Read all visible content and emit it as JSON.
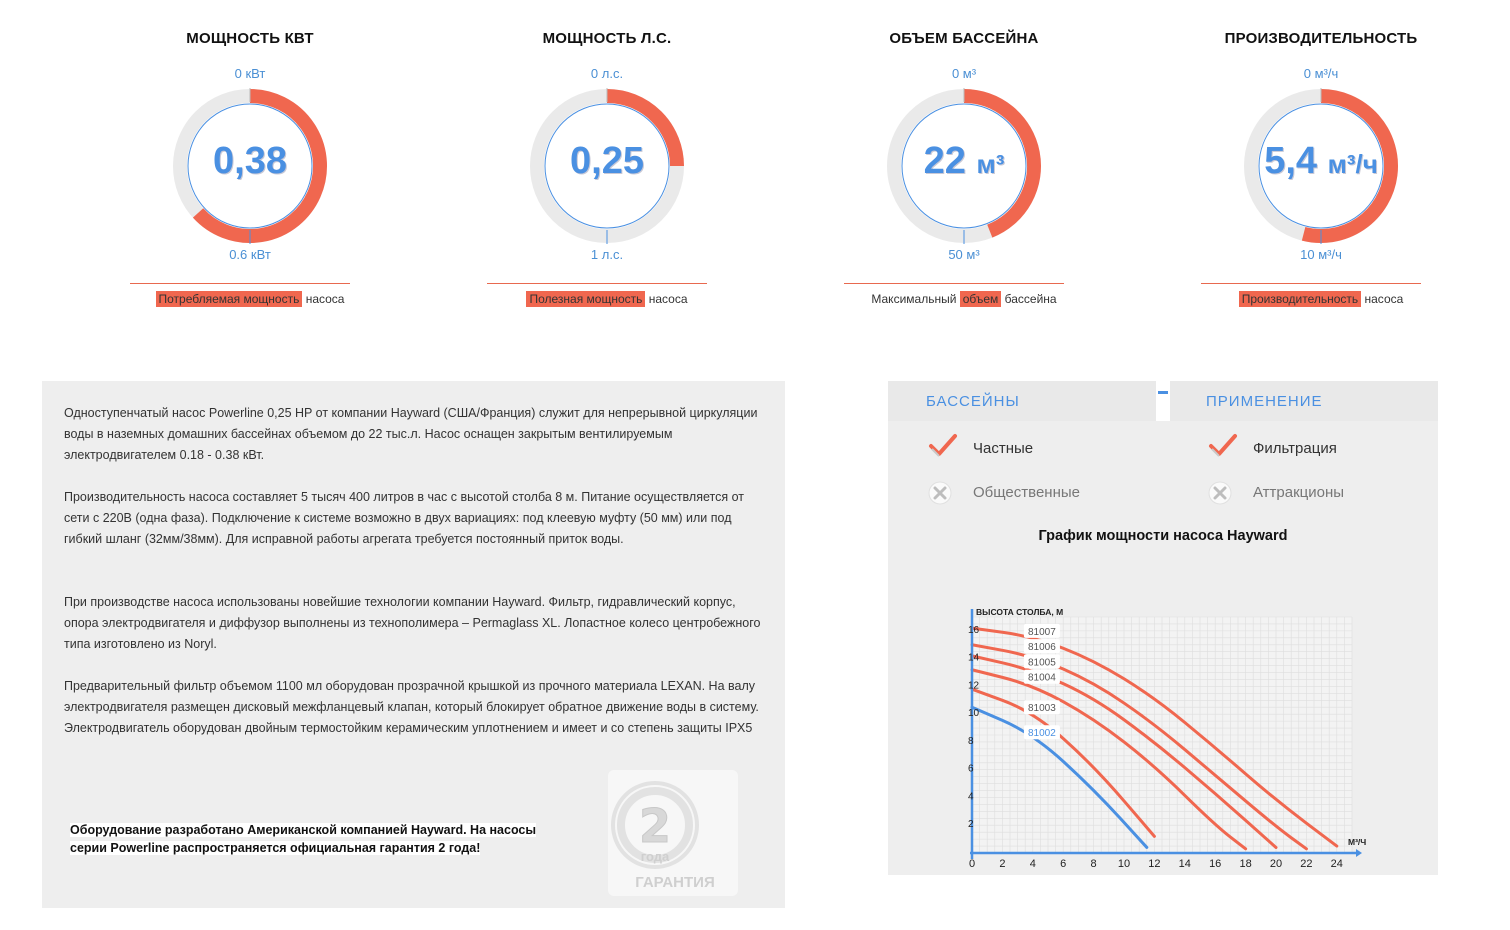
{
  "gauges": [
    {
      "title": "МОЩНОСТЬ КВТ",
      "min": "0 кВт",
      "max": "0.6 кВт",
      "value": "0,38",
      "unit": "",
      "fraction": 0.633,
      "caption_highlight": "Потребляемая мощность",
      "caption_pre": "",
      "caption_post": " насоса"
    },
    {
      "title": "МОЩНОСТЬ Л.С.",
      "min": "0 л.с.",
      "max": "1 л.с.",
      "value": "0,25",
      "unit": "",
      "fraction": 0.25,
      "caption_highlight": "Полезная мощность",
      "caption_pre": "",
      "caption_post": " насоса"
    },
    {
      "title": "ОБЪЕМ БАССЕЙНА",
      "min": "0 м³",
      "max": "50 м³",
      "value": "22",
      "unit": "м³",
      "fraction": 0.44,
      "caption_highlight": "объем",
      "caption_pre": "Максимальный ",
      "caption_post": " бассейна"
    },
    {
      "title": "ПРОИЗВОДИТЕЛЬНОСТЬ",
      "min": "0 м³/ч",
      "max": "10 м³/ч",
      "value": "5,4",
      "unit": "м³/ч",
      "fraction": 0.54,
      "caption_highlight": "Производительность",
      "caption_pre": "",
      "caption_post": " насоса"
    }
  ],
  "colors": {
    "accent": "#f0674f",
    "blue": "#4a90e2",
    "track": "#eaeaea"
  },
  "description": {
    "paragraphs": [
      "Одноступенчатый насос Powerline 0,25 HP от компании Hayward (США/Франция) служит для непрерывной циркуляции воды в наземных домашних бассейнах объемом до 22 тыс.л. Насос оснащен закрытым вентилируемым электродвигателем 0.18 - 0.38 кВт.",
      "Производительность насоса составляет 5 тысяч 400 литров в час с высотой столба 8 м. Питание осуществляется от сети с 220В (одна фаза). Подключение к системе возможно в двух вариациях: под клеевую муфту (50 мм) или под гибкий шланг (32мм/38мм). Для исправной работы агрегата требуется постоянный приток воды.",
      "При производстве насоса использованы новейшие технологии компании Hayward. Фильтр, гидравлический корпус, опора электродвигателя и диффузор выполнены из технополимера – Permaglass XL. Лопастное колесо центробежного типа изготовлено из Noryl.",
      "Предварительный фильтр объемом 1100 мл оборудован прозрачной крышкой из прочного материала LEXAN. На валу электродвигателя размещен дисковый межфланцевый клапан, который блокирует обратное движение воды в систему. Электродвигатель оборудован двойным термостойким керамическим уплотнением и имеет и со степень защиты IPX5"
    ],
    "note": "Оборудование разработано Американской компанией Hayward. На насосы серии Powerline распространяется официальная гарантия 2 года!",
    "warranty": {
      "number": "2",
      "years": "года",
      "label": "ГАРАНТИЯ"
    }
  },
  "usage": {
    "pools_header": "БАССЕЙНЫ",
    "apps_header": "ПРИМЕНЕНИЕ",
    "pools": [
      {
        "label": "Частные",
        "on": true
      },
      {
        "label": "Общественные",
        "on": false
      }
    ],
    "apps": [
      {
        "label": "Фильтрация",
        "on": true
      },
      {
        "label": "Аттракционы",
        "on": false
      }
    ]
  },
  "chart_data": {
    "type": "line",
    "title": "График мощности насоса Hayward",
    "ylabel": "ВЫСОТА СТОЛБА, М",
    "xlabel": "М³/Ч",
    "xlim": [
      0,
      25
    ],
    "ylim": [
      0,
      17
    ],
    "xticks": [
      0,
      2,
      4,
      6,
      8,
      10,
      12,
      14,
      16,
      18,
      20,
      22,
      24
    ],
    "yticks": [
      2,
      4,
      6,
      8,
      10,
      12,
      14,
      16
    ],
    "series": [
      {
        "name": "81007",
        "color": "#f0674f",
        "x": [
          0,
          4,
          8,
          12,
          16,
          20,
          24
        ],
        "y": [
          16.2,
          15.6,
          13.9,
          11.2,
          7.6,
          3.8,
          0.5
        ]
      },
      {
        "name": "81006",
        "color": "#f0674f",
        "x": [
          0,
          4,
          8,
          12,
          16,
          20,
          22
        ],
        "y": [
          15,
          14.2,
          12.3,
          9.3,
          5.6,
          1.9,
          0.3
        ]
      },
      {
        "name": "81005",
        "color": "#f0674f",
        "x": [
          0,
          4,
          8,
          12,
          16,
          20
        ],
        "y": [
          14.2,
          13.2,
          11.2,
          8.0,
          4.3,
          0.4
        ]
      },
      {
        "name": "81004",
        "color": "#f0674f",
        "x": [
          0,
          4,
          8,
          12,
          16,
          18
        ],
        "y": [
          13.2,
          12.1,
          9.7,
          6.3,
          2.0,
          0.3
        ]
      },
      {
        "name": "81003",
        "color": "#f0674f",
        "x": [
          0,
          4,
          8,
          12
        ],
        "y": [
          11.8,
          10.2,
          6.3,
          1.2
        ]
      },
      {
        "name": "81002",
        "color": "#4a90e2",
        "x": [
          0,
          4,
          8,
          11.5
        ],
        "y": [
          10.5,
          8.6,
          4.6,
          0.4
        ]
      }
    ]
  }
}
